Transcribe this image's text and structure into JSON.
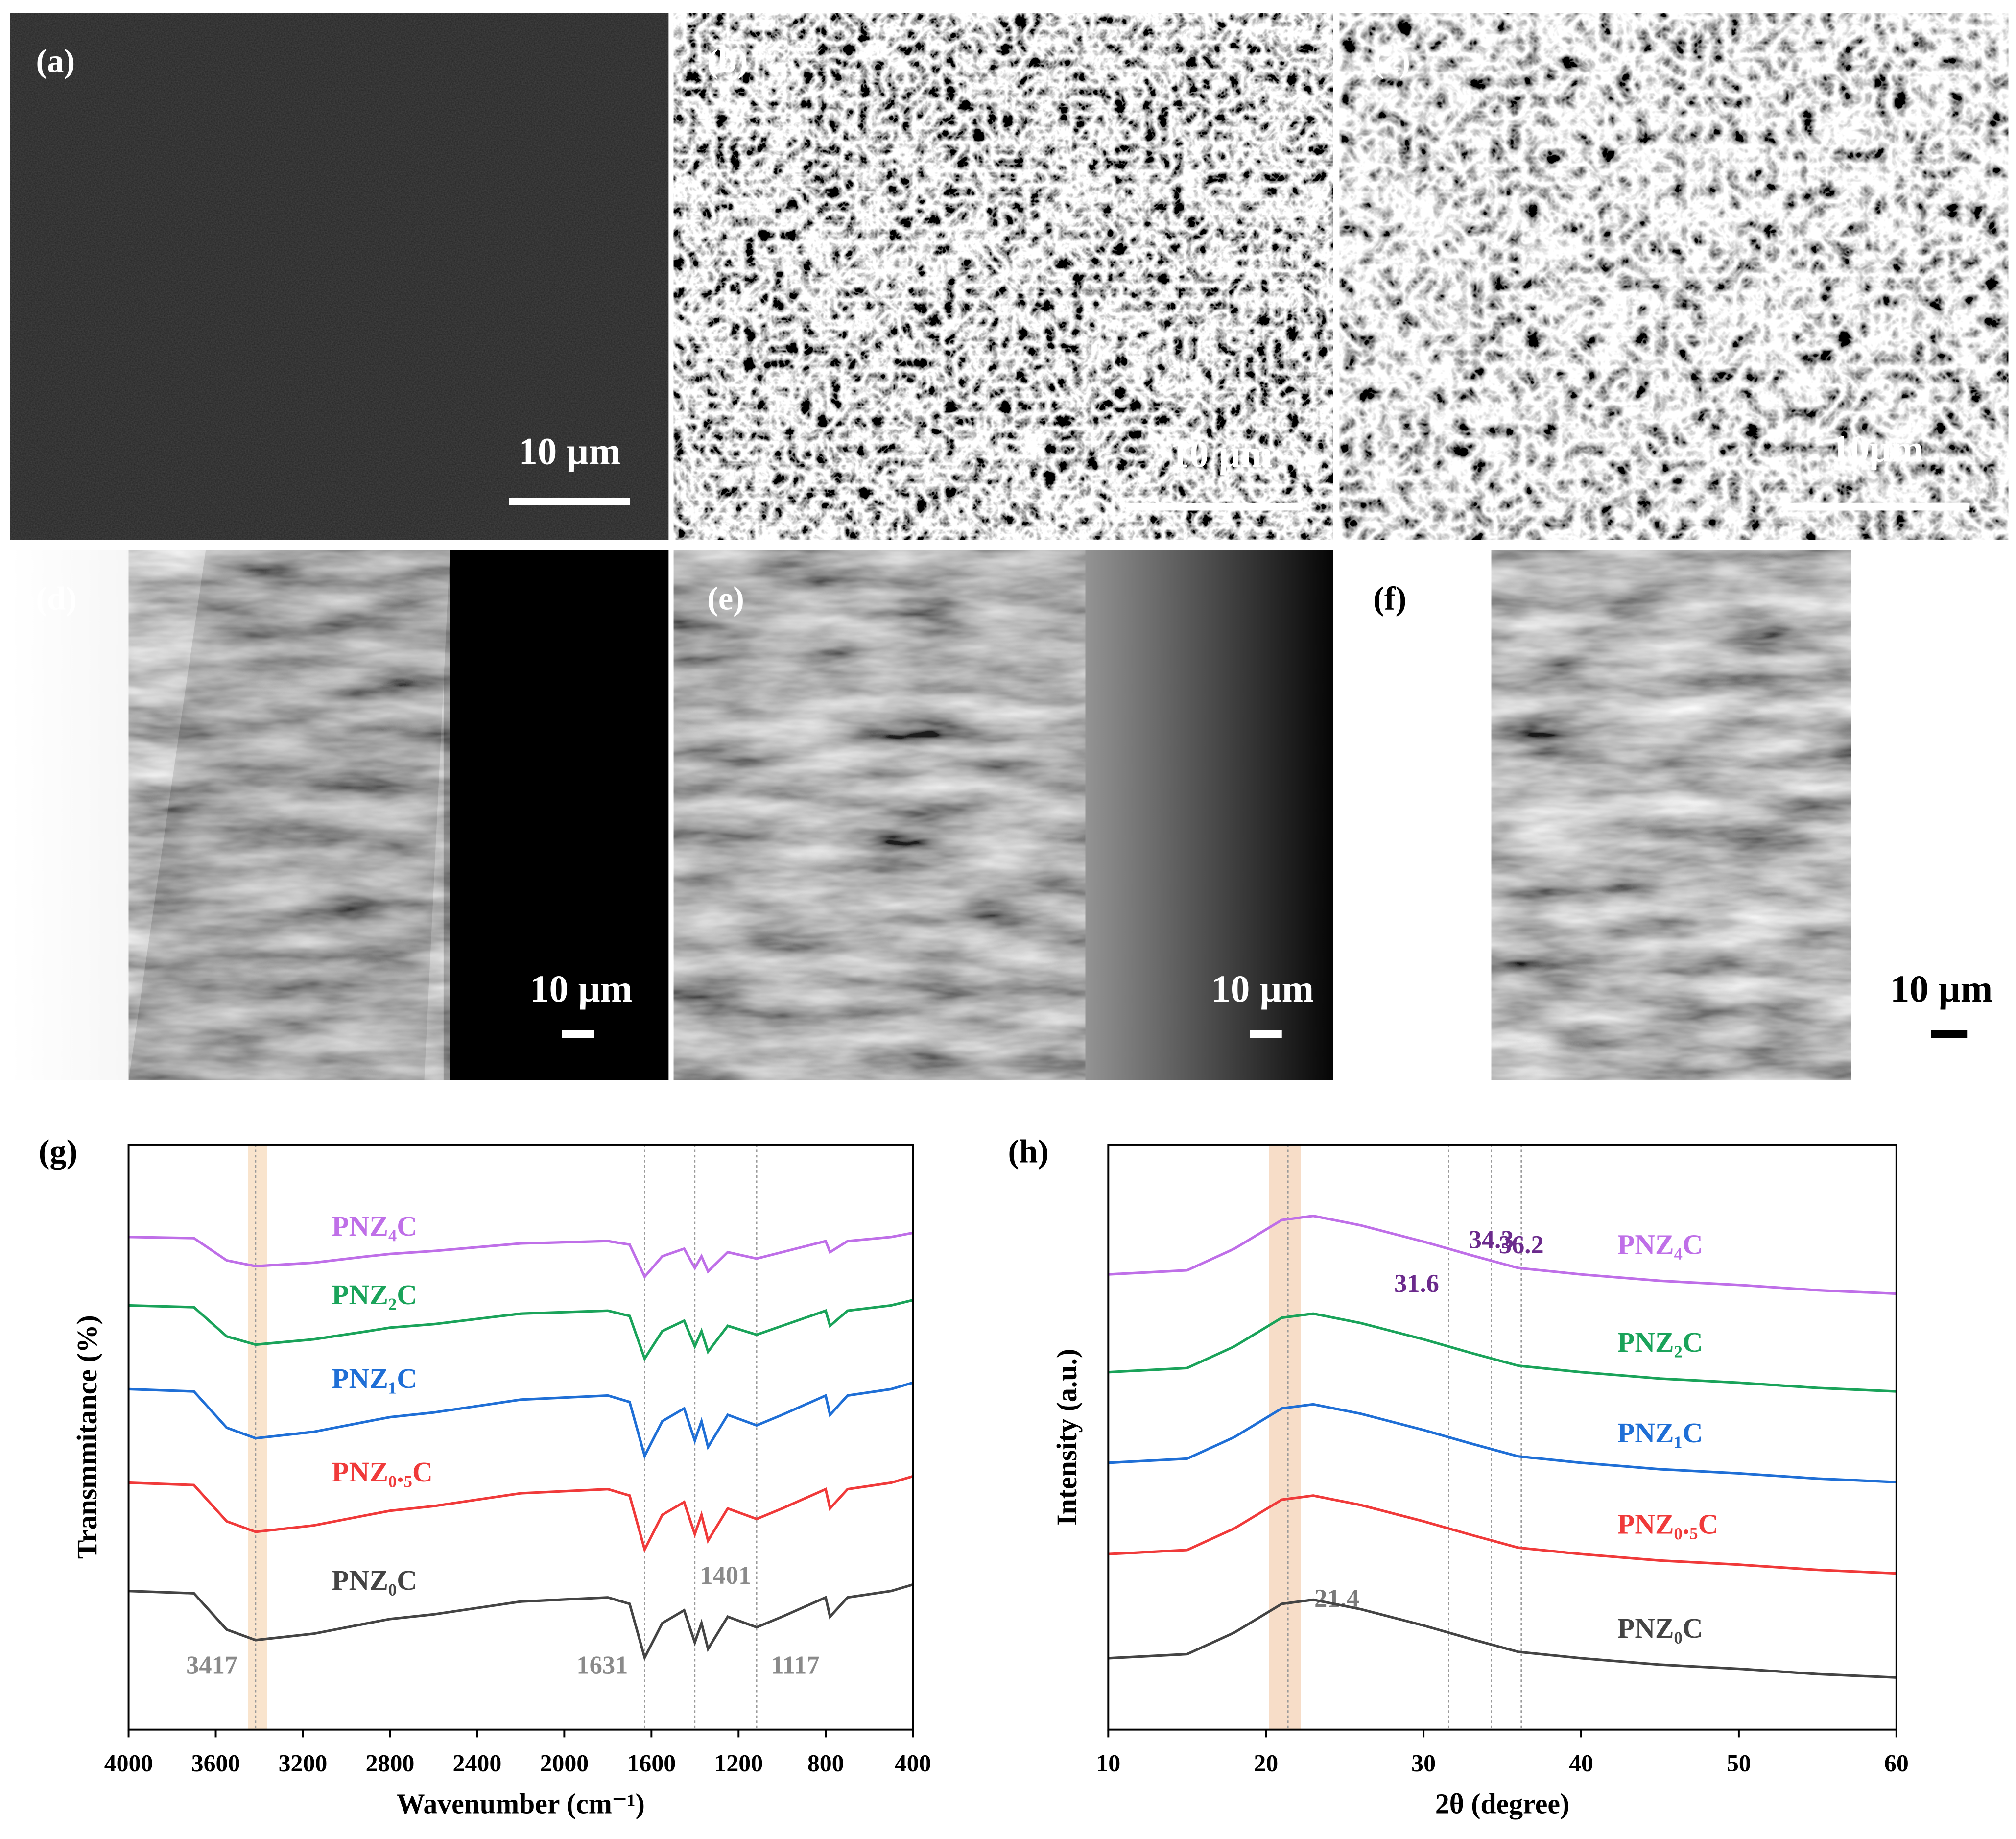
{
  "panel_labels": [
    "(a)",
    "(b)",
    "(c)",
    "(d)",
    "(e)",
    "(f)",
    "(g)",
    "(h)"
  ],
  "scale_bars": [
    "10 µm",
    "10 µm",
    "10μm",
    "10 µm",
    "10 µm",
    "10 µm"
  ],
  "chart_data": [
    {
      "type": "line",
      "xlabel": "Wavenumber (cm⁻¹)",
      "ylabel": "Transmmitance (%)",
      "x": [
        4000,
        3700,
        3550,
        3417,
        3150,
        2900,
        2800,
        2600,
        2200,
        1800,
        1700,
        1631,
        1550,
        1450,
        1401,
        1370,
        1340,
        1250,
        1117,
        1000,
        800,
        780,
        700,
        500,
        400
      ],
      "xlim": [
        4000,
        400
      ],
      "xticks": [
        4000,
        3600,
        3200,
        2800,
        2400,
        2000,
        1600,
        1200,
        800,
        400
      ],
      "ylim": [
        0,
        100
      ],
      "highlight": [
        3451,
        3363
      ],
      "highlight_color": "#f6d9b8",
      "annotation_color": "#8a8a8a",
      "annotations": [
        {
          "label": "3417",
          "x": 3417
        },
        {
          "label": "1631",
          "x": 1631
        },
        {
          "label": "1401",
          "x": 1401
        },
        {
          "label": "1117",
          "x": 1117
        }
      ],
      "series": [
        {
          "name": "PNZ₄C",
          "color": "#bf6fe8",
          "values": [
            84.2,
            84.0,
            80.2,
            79.2,
            79.8,
            80.9,
            81.3,
            81.8,
            83.1,
            83.5,
            82.9,
            77.4,
            80.9,
            82.2,
            78.9,
            80.9,
            78.3,
            81.6,
            80.5,
            81.6,
            83.5,
            81.6,
            83.5,
            84.2,
            84.9
          ]
        },
        {
          "name": "PNZ₂C",
          "color": "#1aa35a",
          "values": [
            72.5,
            72.2,
            67.2,
            65.8,
            66.7,
            68.1,
            68.7,
            69.3,
            71.1,
            71.6,
            70.7,
            63.4,
            68.1,
            69.9,
            65.5,
            68.1,
            64.6,
            69.0,
            67.5,
            69.0,
            71.6,
            69.0,
            71.6,
            72.5,
            73.4
          ]
        },
        {
          "name": "PNZ₁C",
          "color": "#1f6fd6",
          "values": [
            58.2,
            57.8,
            51.6,
            49.8,
            50.9,
            52.7,
            53.4,
            54.2,
            56.4,
            57.1,
            56.0,
            46.8,
            52.7,
            54.9,
            49.4,
            52.7,
            48.3,
            53.8,
            52.0,
            53.8,
            57.1,
            53.8,
            57.1,
            58.2,
            59.3
          ]
        },
        {
          "name": "PNZ₀.₅C",
          "color": "#f03a3a",
          "values": [
            42.2,
            41.8,
            35.6,
            33.8,
            34.9,
            36.7,
            37.4,
            38.2,
            40.4,
            41.1,
            40.0,
            30.8,
            36.7,
            38.9,
            33.4,
            36.7,
            32.3,
            37.8,
            36.0,
            37.8,
            41.1,
            37.8,
            41.1,
            42.2,
            43.3
          ]
        },
        {
          "name": "PNZ₀C",
          "color": "#444444",
          "values": [
            23.7,
            23.3,
            17.1,
            15.3,
            16.4,
            18.2,
            18.9,
            19.7,
            21.9,
            22.6,
            21.5,
            12.3,
            18.2,
            20.4,
            14.9,
            18.2,
            13.8,
            19.3,
            17.5,
            19.3,
            22.6,
            19.3,
            22.6,
            23.7,
            24.8
          ]
        }
      ]
    },
    {
      "type": "line",
      "xlabel": "2θ (degree)",
      "ylabel": "Intensity (a.u.)",
      "x": [
        10,
        15,
        18,
        21,
        23,
        26,
        30,
        33,
        36,
        40,
        45,
        50,
        55,
        60
      ],
      "xlim": [
        10,
        60
      ],
      "xticks": [
        10,
        20,
        30,
        40,
        50,
        60
      ],
      "ylim": [
        0,
        100
      ],
      "highlight": [
        20.2,
        22.2
      ],
      "highlight_color": "#f3cfb0",
      "annotation_color": "#6b2a8c",
      "annotations": [
        {
          "label": "21.4",
          "x": 21.4,
          "color": "#7a7a7a"
        },
        {
          "label": "31.6",
          "x": 31.6
        },
        {
          "label": "34.3",
          "x": 34.3
        },
        {
          "label": "36.2",
          "x": 36.2
        }
      ],
      "series": [
        {
          "name": "PNZ₄C",
          "color": "#bf6fe8",
          "values": [
            77.8,
            78.5,
            82.2,
            87.1,
            87.8,
            86.2,
            83.4,
            81.1,
            78.9,
            77.8,
            76.7,
            76.0,
            75.1,
            74.5
          ]
        },
        {
          "name": "PNZ₂C",
          "color": "#1aa35a",
          "values": [
            61.1,
            61.8,
            65.5,
            70.4,
            71.1,
            69.5,
            66.7,
            64.4,
            62.2,
            61.1,
            60.0,
            59.3,
            58.4,
            57.8
          ]
        },
        {
          "name": "PNZ₁C",
          "color": "#1f6fd6",
          "values": [
            45.6,
            46.3,
            50.0,
            54.9,
            55.6,
            54.0,
            51.2,
            48.9,
            46.7,
            45.6,
            44.5,
            43.8,
            42.9,
            42.3
          ]
        },
        {
          "name": "PNZ₀.₅C",
          "color": "#f03a3a",
          "values": [
            30.0,
            30.7,
            34.4,
            39.3,
            40.0,
            38.4,
            35.6,
            33.3,
            31.1,
            30.0,
            28.9,
            28.2,
            27.3,
            26.7
          ]
        },
        {
          "name": "PNZ₀C",
          "color": "#444444",
          "values": [
            12.2,
            12.9,
            16.6,
            21.5,
            22.2,
            20.6,
            17.8,
            15.5,
            13.3,
            12.2,
            11.1,
            10.4,
            9.5,
            8.9
          ]
        }
      ]
    }
  ]
}
